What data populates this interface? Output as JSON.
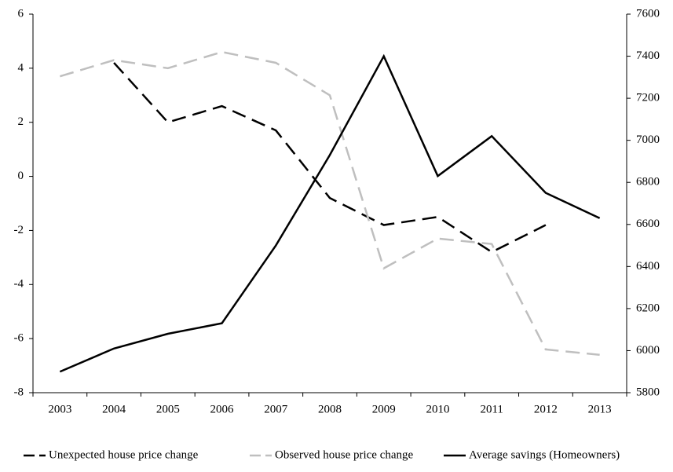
{
  "chart_data": {
    "type": "line",
    "categories": [
      "2003",
      "2004",
      "2005",
      "2006",
      "2007",
      "2008",
      "2009",
      "2010",
      "2011",
      "2012",
      "2013"
    ],
    "ylim": [
      -8,
      6
    ],
    "yticks": [
      -8,
      -6,
      -4,
      -2,
      0,
      2,
      4,
      6
    ],
    "y2lim": [
      5800,
      7600
    ],
    "y2ticks": [
      5800,
      6000,
      6200,
      6400,
      6600,
      6800,
      7000,
      7200,
      7400,
      7600
    ],
    "grid": false,
    "legend": "bottom",
    "series": [
      {
        "name": "Unexpected house price change",
        "color": "#000000",
        "line_style": "dashed",
        "values": [
          null,
          4.2,
          2.0,
          2.6,
          1.7,
          -0.8,
          -1.8,
          -1.5,
          -2.8,
          -1.8,
          null
        ]
      },
      {
        "name": "Observed house price change",
        "color": "#bfbfbf",
        "line_style": "dashed",
        "values": [
          3.7,
          4.3,
          4.0,
          4.6,
          4.2,
          3.0,
          -3.4,
          -2.3,
          -2.5,
          -6.4,
          -6.6
        ]
      },
      {
        "name": "Average savings (Homeowners)",
        "color": "#000000",
        "line_style": "solid",
        "axis": "y2",
        "values": [
          5900,
          6010,
          6080,
          6130,
          6500,
          6930,
          7400,
          6830,
          7020,
          6750,
          6630
        ]
      }
    ]
  }
}
